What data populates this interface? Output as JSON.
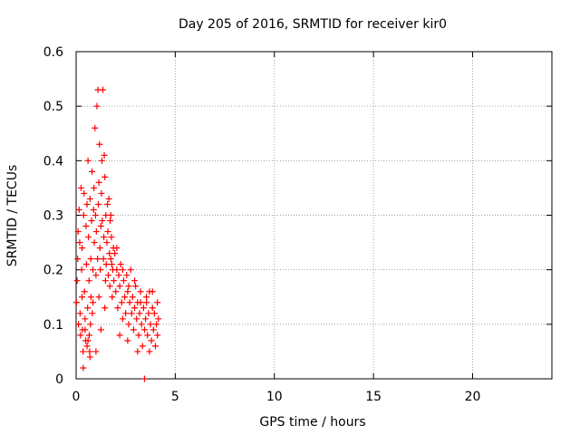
{
  "chart_data": {
    "type": "scatter",
    "title": "Day 205 of 2016, SRMTID for receiver kir0",
    "xlabel": "GPS time / hours",
    "ylabel": "SRMTID / TECUs",
    "xlim": [
      0,
      24
    ],
    "ylim": [
      0,
      0.6
    ],
    "xticks": [
      0,
      5,
      10,
      15,
      20
    ],
    "xtick_labels": [
      "0",
      "5",
      "10",
      "15",
      "20"
    ],
    "yticks": [
      0,
      0.1,
      0.2,
      0.3,
      0.4,
      0.5,
      0.6
    ],
    "ytick_labels": [
      "0",
      "0.1",
      "0.2",
      "0.3",
      "0.4",
      "0.5",
      "0.6"
    ],
    "grid": true,
    "marker": "plus",
    "color": "#ff0000",
    "series": [
      {
        "name": "SRMTID",
        "points": [
          [
            0.02,
            0.14
          ],
          [
            0.05,
            0.18
          ],
          [
            0.08,
            0.22
          ],
          [
            0.1,
            0.27
          ],
          [
            0.12,
            0.1
          ],
          [
            0.15,
            0.31
          ],
          [
            0.18,
            0.25
          ],
          [
            0.2,
            0.12
          ],
          [
            0.22,
            0.08
          ],
          [
            0.25,
            0.35
          ],
          [
            0.28,
            0.2
          ],
          [
            0.3,
            0.15
          ],
          [
            0.32,
            0.09
          ],
          [
            0.35,
            0.05
          ],
          [
            0.36,
            0.02
          ],
          [
            0.38,
            0.3
          ],
          [
            0.4,
            0.34
          ],
          [
            0.42,
            0.16
          ],
          [
            0.45,
            0.11
          ],
          [
            0.48,
            0.07
          ],
          [
            0.5,
            0.28
          ],
          [
            0.52,
            0.21
          ],
          [
            0.55,
            0.06
          ],
          [
            0.58,
            0.13
          ],
          [
            0.6,
            0.4
          ],
          [
            0.62,
            0.26
          ],
          [
            0.65,
            0.18
          ],
          [
            0.66,
            0.08
          ],
          [
            0.68,
            0.05
          ],
          [
            0.7,
            0.33
          ],
          [
            0.72,
            0.1
          ],
          [
            0.74,
            0.22
          ],
          [
            0.75,
            0.15
          ],
          [
            0.78,
            0.29
          ],
          [
            0.8,
            0.38
          ],
          [
            0.82,
            0.12
          ],
          [
            0.85,
            0.2
          ],
          [
            0.88,
            0.31
          ],
          [
            0.9,
            0.35
          ],
          [
            0.92,
            0.25
          ],
          [
            0.95,
            0.46
          ],
          [
            0.98,
            0.3
          ],
          [
            1.0,
            0.19
          ],
          [
            1.02,
            0.27
          ],
          [
            1.05,
            0.5
          ],
          [
            1.08,
            0.22
          ],
          [
            1.1,
            0.53
          ],
          [
            1.12,
            0.32
          ],
          [
            1.15,
            0.15
          ],
          [
            1.18,
            0.43
          ],
          [
            1.2,
            0.24
          ],
          [
            1.22,
            0.2
          ],
          [
            1.25,
            0.28
          ],
          [
            1.28,
            0.34
          ],
          [
            1.3,
            0.4
          ],
          [
            1.32,
            0.29
          ],
          [
            1.35,
            0.53
          ],
          [
            1.38,
            0.22
          ],
          [
            1.4,
            0.26
          ],
          [
            1.42,
            0.41
          ],
          [
            1.45,
            0.37
          ],
          [
            1.48,
            0.18
          ],
          [
            1.5,
            0.3
          ],
          [
            1.52,
            0.21
          ],
          [
            1.55,
            0.25
          ],
          [
            1.58,
            0.32
          ],
          [
            1.6,
            0.27
          ],
          [
            1.62,
            0.19
          ],
          [
            1.65,
            0.33
          ],
          [
            1.68,
            0.23
          ],
          [
            1.7,
            0.17
          ],
          [
            1.72,
            0.29
          ],
          [
            1.75,
            0.22
          ],
          [
            1.78,
            0.26
          ],
          [
            1.8,
            0.21
          ],
          [
            1.82,
            0.15
          ],
          [
            1.85,
            0.2
          ],
          [
            1.88,
            0.24
          ],
          [
            1.9,
            0.18
          ],
          [
            1.95,
            0.23
          ],
          [
            2.0,
            0.16
          ],
          [
            2.05,
            0.2
          ],
          [
            2.1,
            0.13
          ],
          [
            2.15,
            0.19
          ],
          [
            2.2,
            0.17
          ],
          [
            2.25,
            0.21
          ],
          [
            2.3,
            0.14
          ],
          [
            2.35,
            0.11
          ],
          [
            2.4,
            0.18
          ],
          [
            2.45,
            0.15
          ],
          [
            2.5,
            0.12
          ],
          [
            2.55,
            0.19
          ],
          [
            2.6,
            0.16
          ],
          [
            2.65,
            0.1
          ],
          [
            2.7,
            0.14
          ],
          [
            2.75,
            0.2
          ],
          [
            2.8,
            0.12
          ],
          [
            2.85,
            0.15
          ],
          [
            2.9,
            0.09
          ],
          [
            2.95,
            0.13
          ],
          [
            3.0,
            0.17
          ],
          [
            3.05,
            0.11
          ],
          [
            3.1,
            0.14
          ],
          [
            3.15,
            0.08
          ],
          [
            3.2,
            0.12
          ],
          [
            3.25,
            0.16
          ],
          [
            3.3,
            0.1
          ],
          [
            3.35,
            0.06
          ],
          [
            3.4,
            0.13
          ],
          [
            3.45,
            0.09
          ],
          [
            3.5,
            0.11
          ],
          [
            3.55,
            0.14
          ],
          [
            3.6,
            0.08
          ],
          [
            3.65,
            0.12
          ],
          [
            3.7,
            0.16
          ],
          [
            3.75,
            0.1
          ],
          [
            3.8,
            0.07
          ],
          [
            3.85,
            0.13
          ],
          [
            3.9,
            0.09
          ],
          [
            3.95,
            0.12
          ],
          [
            4.0,
            0.06
          ],
          [
            4.05,
            0.1
          ],
          [
            4.1,
            0.08
          ],
          [
            4.15,
            0.11
          ],
          [
            0.3,
            0.24
          ],
          [
            0.55,
            0.32
          ],
          [
            0.85,
            0.14
          ],
          [
            1.15,
            0.36
          ],
          [
            1.45,
            0.13
          ],
          [
            1.75,
            0.3
          ],
          [
            2.05,
            0.24
          ],
          [
            2.35,
            0.2
          ],
          [
            2.65,
            0.17
          ],
          [
            2.95,
            0.18
          ],
          [
            3.25,
            0.14
          ],
          [
            3.55,
            0.15
          ],
          [
            3.85,
            0.16
          ],
          [
            4.1,
            0.14
          ],
          [
            0.45,
            0.09
          ],
          [
            0.6,
            0.07
          ],
          [
            0.7,
            0.04
          ],
          [
            1.0,
            0.05
          ],
          [
            1.25,
            0.09
          ],
          [
            2.2,
            0.08
          ],
          [
            2.6,
            0.07
          ],
          [
            3.1,
            0.05
          ],
          [
            3.7,
            0.05
          ],
          [
            3.45,
            0.0
          ]
        ]
      }
    ]
  }
}
